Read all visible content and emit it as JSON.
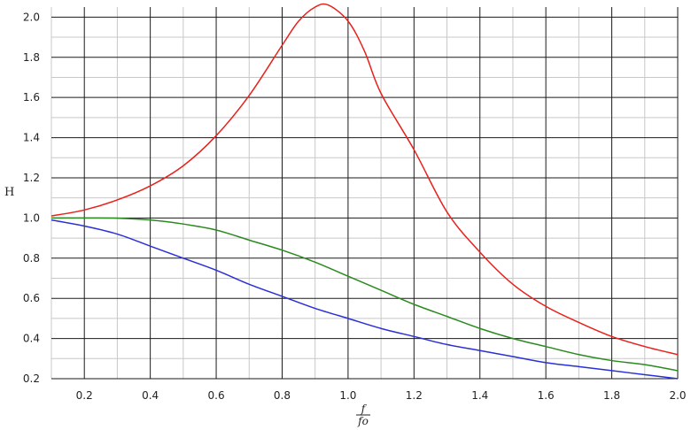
{
  "chart_data": {
    "type": "line",
    "title": "",
    "xlabel_numerator": "f",
    "xlabel_denominator": "fo",
    "ylabel": "H",
    "xlim": [
      0.1,
      2.0
    ],
    "ylim": [
      0.2,
      2.05
    ],
    "grid": true,
    "x_ticks": [
      0.2,
      0.4,
      0.6,
      0.8,
      1.0,
      1.2,
      1.4,
      1.6,
      1.8,
      2.0
    ],
    "y_ticks": [
      0.2,
      0.4,
      0.6,
      0.8,
      1.0,
      1.2,
      1.4,
      1.6,
      1.8,
      2.0
    ],
    "series": [
      {
        "color": "#e8211b",
        "x": [
          0.1,
          0.2,
          0.3,
          0.4,
          0.5,
          0.6,
          0.7,
          0.8,
          0.85,
          0.9,
          0.94,
          1.0,
          1.05,
          1.1,
          1.2,
          1.3,
          1.4,
          1.5,
          1.6,
          1.7,
          1.8,
          1.9,
          2.0
        ],
        "y": [
          1.01,
          1.04,
          1.09,
          1.16,
          1.26,
          1.41,
          1.61,
          1.86,
          1.98,
          2.05,
          2.06,
          1.98,
          1.83,
          1.62,
          1.34,
          1.03,
          0.83,
          0.67,
          0.56,
          0.48,
          0.41,
          0.36,
          0.32
        ]
      },
      {
        "color": "#2a8a1e",
        "x": [
          0.1,
          0.2,
          0.3,
          0.4,
          0.5,
          0.6,
          0.7,
          0.8,
          0.9,
          1.0,
          1.1,
          1.2,
          1.3,
          1.4,
          1.5,
          1.6,
          1.7,
          1.8,
          1.9,
          2.0
        ],
        "y": [
          1.0,
          1.0,
          0.999,
          0.99,
          0.97,
          0.94,
          0.89,
          0.84,
          0.78,
          0.71,
          0.64,
          0.57,
          0.51,
          0.45,
          0.4,
          0.36,
          0.32,
          0.29,
          0.27,
          0.24
        ]
      },
      {
        "color": "#2a2fd6",
        "x": [
          0.1,
          0.2,
          0.3,
          0.4,
          0.5,
          0.6,
          0.7,
          0.8,
          0.9,
          1.0,
          1.1,
          1.2,
          1.3,
          1.4,
          1.5,
          1.6,
          1.7,
          1.8,
          1.9,
          2.0
        ],
        "y": [
          0.99,
          0.96,
          0.92,
          0.86,
          0.8,
          0.74,
          0.67,
          0.61,
          0.55,
          0.5,
          0.45,
          0.41,
          0.37,
          0.34,
          0.31,
          0.28,
          0.26,
          0.24,
          0.22,
          0.2
        ]
      }
    ]
  }
}
